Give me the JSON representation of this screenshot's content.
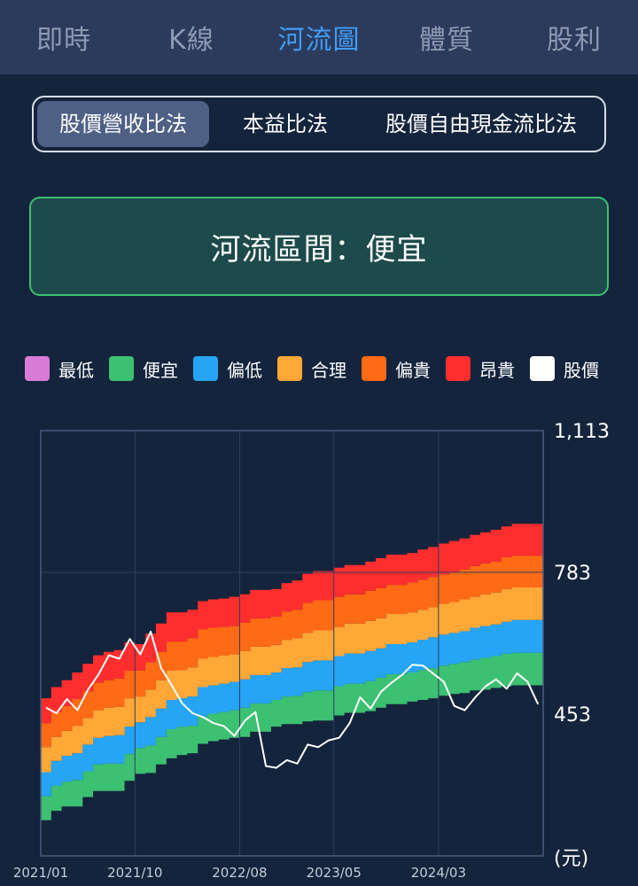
{
  "tabs": [
    {
      "label": "即時",
      "active": false
    },
    {
      "label": "K線",
      "active": false
    },
    {
      "label": "河流圖",
      "active": true
    },
    {
      "label": "體質",
      "active": false
    },
    {
      "label": "股利",
      "active": false
    }
  ],
  "methods": [
    {
      "label": "股價營收比法",
      "active": true
    },
    {
      "label": "本益比法",
      "active": false
    },
    {
      "label": "股價自由現金流比法",
      "active": false
    }
  ],
  "zone": {
    "label": "河流區間：便宜"
  },
  "legend": [
    {
      "label": "最低",
      "color": "#d97ad6"
    },
    {
      "label": "便宜",
      "color": "#3cc071"
    },
    {
      "label": "偏低",
      "color": "#26a4f5"
    },
    {
      "label": "合理",
      "color": "#ffa737"
    },
    {
      "label": "偏貴",
      "color": "#ff6a14"
    },
    {
      "label": "昂貴",
      "color": "#ff2e2e"
    },
    {
      "label": "股價",
      "color": "#ffffff"
    }
  ],
  "chart_data": {
    "type": "area",
    "x_labels": [
      "2021/01",
      "2021/10",
      "2022/08",
      "2023/05",
      "2024/03"
    ],
    "x_start": "2021/01",
    "x_end": "2025/01",
    "y_ticks": [
      "1,113",
      "783",
      "453"
    ],
    "y_unit": "(元)",
    "ylim": [
      123,
      1113
    ],
    "band_boundaries": {
      "months": [
        "2021/01",
        "2021/02",
        "2021/03",
        "2021/04",
        "2021/05",
        "2021/06",
        "2021/07",
        "2021/08",
        "2021/09",
        "2021/10",
        "2021/11",
        "2021/12",
        "2022/01",
        "2022/02",
        "2022/03",
        "2022/04",
        "2022/05",
        "2022/06",
        "2022/07",
        "2022/08",
        "2022/09",
        "2022/10",
        "2022/11",
        "2022/12",
        "2023/01",
        "2023/02",
        "2023/03",
        "2023/04",
        "2023/05",
        "2023/06",
        "2023/07",
        "2023/08",
        "2023/09",
        "2023/10",
        "2023/11",
        "2023/12",
        "2024/01",
        "2024/02",
        "2024/03",
        "2024/04",
        "2024/05",
        "2024/06",
        "2024/07",
        "2024/08",
        "2024/09",
        "2024/10",
        "2024/11",
        "2024/12"
      ],
      "b0": [
        206,
        228,
        238,
        238,
        260,
        274,
        274,
        274,
        298,
        314,
        316,
        336,
        350,
        358,
        362,
        384,
        390,
        394,
        398,
        400,
        412,
        412,
        424,
        430,
        430,
        436,
        438,
        438,
        450,
        456,
        456,
        460,
        468,
        476,
        476,
        482,
        486,
        490,
        496,
        500,
        502,
        508,
        510,
        514,
        518,
        520,
        520,
        520
      ],
      "b1": [
        262,
        286,
        296,
        300,
        320,
        336,
        338,
        338,
        360,
        374,
        380,
        400,
        418,
        424,
        426,
        448,
        454,
        458,
        462,
        468,
        478,
        478,
        486,
        494,
        496,
        504,
        508,
        508,
        518,
        524,
        524,
        530,
        538,
        546,
        546,
        550,
        556,
        560,
        566,
        570,
        574,
        580,
        584,
        588,
        594,
        596,
        596,
        596
      ],
      "b2": [
        318,
        344,
        356,
        362,
        382,
        398,
        402,
        404,
        424,
        434,
        446,
        466,
        486,
        490,
        494,
        516,
        520,
        524,
        528,
        534,
        544,
        544,
        550,
        560,
        562,
        574,
        578,
        578,
        588,
        594,
        594,
        600,
        606,
        616,
        616,
        620,
        626,
        632,
        638,
        642,
        646,
        654,
        658,
        662,
        668,
        672,
        672,
        672
      ],
      "b3": [
        376,
        400,
        414,
        426,
        444,
        462,
        468,
        470,
        490,
        494,
        510,
        532,
        554,
        556,
        562,
        582,
        586,
        590,
        592,
        600,
        610,
        610,
        614,
        626,
        630,
        642,
        648,
        648,
        656,
        664,
        664,
        670,
        676,
        686,
        686,
        690,
        696,
        702,
        710,
        714,
        720,
        726,
        732,
        736,
        744,
        748,
        748,
        748
      ],
      "b4": [
        432,
        458,
        472,
        488,
        506,
        526,
        532,
        536,
        554,
        554,
        574,
        598,
        622,
        622,
        630,
        650,
        654,
        656,
        658,
        666,
        676,
        676,
        680,
        692,
        696,
        712,
        718,
        718,
        726,
        732,
        732,
        740,
        746,
        754,
        754,
        760,
        766,
        772,
        778,
        784,
        790,
        798,
        804,
        808,
        818,
        822,
        822,
        822
      ],
      "b5": [
        490,
        516,
        532,
        550,
        570,
        590,
        598,
        602,
        620,
        616,
        640,
        664,
        690,
        690,
        696,
        716,
        720,
        722,
        726,
        732,
        742,
        742,
        744,
        758,
        764,
        780,
        786,
        786,
        794,
        800,
        800,
        808,
        816,
        824,
        824,
        828,
        836,
        842,
        850,
        856,
        862,
        870,
        876,
        882,
        890,
        896,
        896,
        896
      ]
    },
    "series": [
      {
        "name": "股價",
        "months": [
          "2021/01",
          "2021/02",
          "2021/03",
          "2021/04",
          "2021/05",
          "2021/06",
          "2021/07",
          "2021/08",
          "2021/09",
          "2021/10",
          "2021/11",
          "2021/12",
          "2022/01",
          "2022/02",
          "2022/03",
          "2022/04",
          "2022/05",
          "2022/06",
          "2022/07",
          "2022/08",
          "2022/09",
          "2022/10",
          "2022/11",
          "2022/12",
          "2023/01",
          "2023/02",
          "2023/03",
          "2023/04",
          "2023/05",
          "2023/06",
          "2023/07",
          "2023/08",
          "2023/09",
          "2023/10",
          "2023/11",
          "2023/12",
          "2024/01",
          "2024/02",
          "2024/03",
          "2024/04",
          "2024/05",
          "2024/06",
          "2024/07",
          "2024/08",
          "2024/09",
          "2024/10",
          "2024/11",
          "2024/12"
        ],
        "values": [
          468,
          455,
          488,
          462,
          510,
          545,
          590,
          582,
          628,
          592,
          645,
          560,
          520,
          478,
          455,
          446,
          432,
          425,
          402,
          438,
          458,
          332,
          328,
          346,
          338,
          382,
          376,
          392,
          398,
          432,
          492,
          466,
          505,
          526,
          544,
          568,
          566,
          547,
          528,
          472,
          462,
          492,
          518,
          534,
          512,
          548,
          528,
          476
        ]
      }
    ]
  }
}
